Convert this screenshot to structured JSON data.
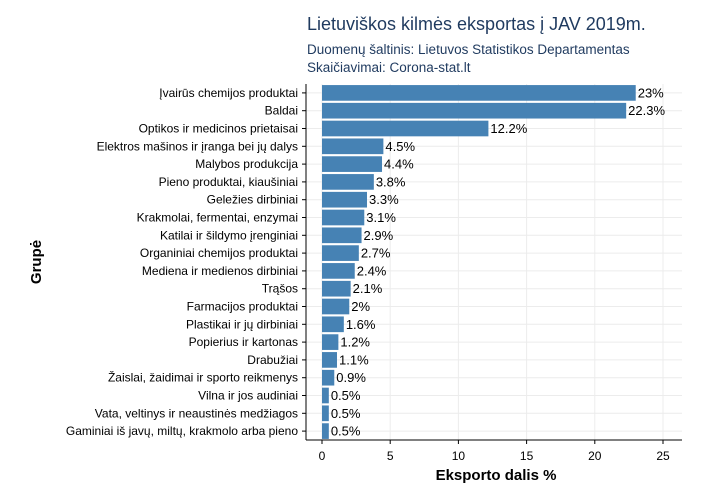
{
  "chart_data": {
    "type": "bar",
    "orientation": "horizontal",
    "title": "Lietuviškos kilmės eksportas į JAV 2019m.",
    "subtitle_lines": [
      "Duomenų šaltinis: Lietuvos Statistikos Departamentas",
      "Skaičiavimai: Corona-stat.lt"
    ],
    "xlabel": "Eksporto dalis %",
    "ylabel": "Grupė",
    "xlim": [
      0,
      25
    ],
    "xticks": [
      0,
      5,
      10,
      15,
      20,
      25
    ],
    "bar_color": "#4682b4",
    "grid": true,
    "categories": [
      "Įvairūs chemijos produktai",
      "Baldai",
      "Optikos ir medicinos prietaisai",
      "Elektros mašinos ir įranga bei jų dalys",
      "Malybos produkcija",
      "Pieno produktai, kiaušiniai",
      "Geležies dirbiniai",
      "Krakmolai, fermentai, enzymai",
      "Katilai ir šildymo įrenginiai",
      "Organiniai chemijos produktai",
      "Mediena ir medienos dirbiniai",
      "Trąšos",
      "Farmacijos produktai",
      "Plastikai ir jų dirbiniai",
      "Popierius ir kartonas",
      "Drabužiai",
      "Žaislai, žaidimai ir sporto reikmenys",
      "Vilna ir jos audiniai",
      "Vata, veltinys ir neaustinės medžiagos",
      "Gaminiai iš javų, miltų, krakmolo arba pieno"
    ],
    "values": [
      23,
      22.3,
      12.2,
      4.5,
      4.4,
      3.8,
      3.3,
      3.1,
      2.9,
      2.7,
      2.4,
      2.1,
      2,
      1.6,
      1.2,
      1.1,
      0.9,
      0.5,
      0.5,
      0.5
    ],
    "value_labels": [
      "23%",
      "22.3%",
      "12.2%",
      "4.5%",
      "4.4%",
      "3.8%",
      "3.3%",
      "3.1%",
      "2.9%",
      "2.7%",
      "2.4%",
      "2.1%",
      "2%",
      "1.6%",
      "1.2%",
      "1.1%",
      "0.9%",
      "0.5%",
      "0.5%",
      "0.5%"
    ]
  }
}
